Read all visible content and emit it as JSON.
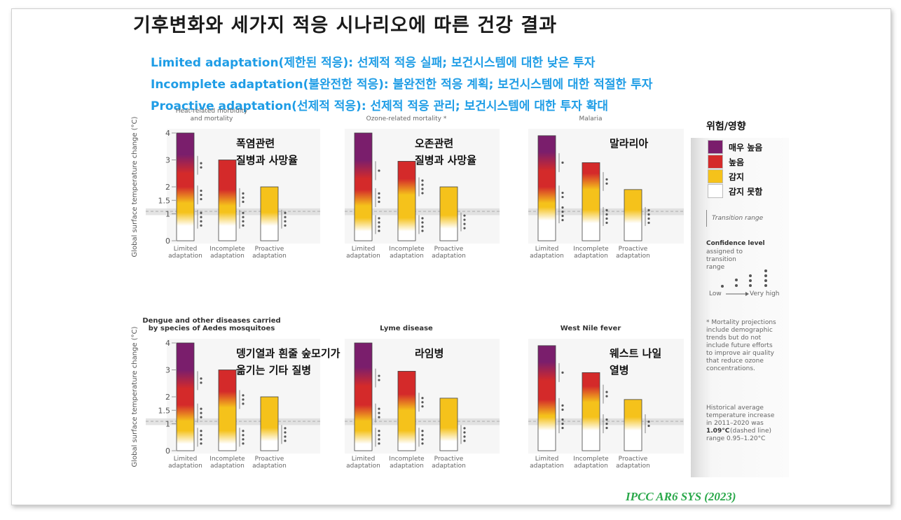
{
  "title": "기후변화와 세가지 적응 시나리오에 따른 건강 결과",
  "subtitles": [
    "Limited adaptation(제한된 적응): 선제적 적응 실패; 보건시스템에 대한 낮은 투자",
    "Incomplete adaptation(불완전한 적응): 불완전한 적응 계획; 보건시스템에 대한 적절한 투자",
    "Proactive adaptation(선제적 적응): 선제적 적응 관리; 보건시스템에 대한 투자 확대"
  ],
  "citation": "IPCC AR6 SYS (2023)",
  "colors": {
    "very_high": "#7a1e6c",
    "high": "#d42a2a",
    "moderate": "#f5c21b",
    "undetectable": "#ffffff",
    "title_blue": "#1f9de6",
    "citation_green": "#2aa84a"
  },
  "legend": {
    "title": "위험/영향",
    "items": [
      {
        "label": "매우 높음",
        "color": "#7a1e6c"
      },
      {
        "label": "높음",
        "color": "#d42a2a"
      },
      {
        "label": "감지",
        "color": "#f5c21b"
      },
      {
        "label": "감지 못함",
        "color": "#ffffff"
      }
    ],
    "transition_label": "Transition range",
    "confidence_title": "Confidence level",
    "confidence_desc": [
      "assigned to",
      "transition",
      "range"
    ],
    "confidence_low": "Low",
    "confidence_high": "Very high",
    "mortality_note": [
      "* Mortality projections",
      "include demographic",
      "trends but do not",
      "include future efforts",
      "to improve air quality",
      "that reduce ozone",
      "concentrations."
    ],
    "historical_note_pre": [
      "Historical average",
      "temperature increase",
      "in 2011–2020 was"
    ],
    "historical_value": "1.09°C",
    "historical_note_post": [
      "(dashed line)",
      "range 0.95–1.20°C"
    ]
  },
  "chart_data": [
    {
      "type": "bar",
      "title": "Heat-related morbidity and mortality",
      "title_lines": [
        "Heat-related morbidity",
        "and mortality"
      ],
      "korean_label": [
        "폭염관련",
        "질병과 사망율"
      ],
      "ylabel": "Global surface temperature change (°C)",
      "ylim": [
        0,
        4
      ],
      "yticks": [
        "0",
        "1",
        "1.5",
        "2",
        "3",
        "4"
      ],
      "categories": [
        [
          "Limited",
          "adaptation"
        ],
        [
          "Incomplete",
          "adaptation"
        ],
        [
          "Proactive",
          "adaptation"
        ]
      ],
      "bars": [
        {
          "top": 4.0,
          "moderate_start": 0.8,
          "high_start": 1.7,
          "very_high_start": 2.8,
          "confidence": [
            "****",
            "***",
            "**"
          ]
        },
        {
          "top": 3.0,
          "moderate_start": 0.8,
          "high_start": 1.6,
          "very_high_start": null,
          "confidence": [
            "****",
            "***"
          ]
        },
        {
          "top": 2.0,
          "moderate_start": 0.8,
          "high_start": null,
          "very_high_start": null,
          "confidence": [
            "****"
          ]
        }
      ]
    },
    {
      "type": "bar",
      "title": "Ozone-related mortality *",
      "title_lines": [
        "Ozone-related mortality *"
      ],
      "korean_label": [
        "오존관련",
        "질병과 사망율"
      ],
      "ylabel": "",
      "ylim": [
        0,
        4
      ],
      "yticks": [],
      "categories": [
        [
          "Limited",
          "adaptation"
        ],
        [
          "Incomplete",
          "adaptation"
        ],
        [
          "Proactive",
          "adaptation"
        ]
      ],
      "bars": [
        {
          "top": 4.0,
          "moderate_start": 0.6,
          "high_start": 1.6,
          "very_high_start": 2.6,
          "confidence": [
            "****",
            "***",
            "*"
          ]
        },
        {
          "top": 2.95,
          "moderate_start": 0.6,
          "high_start": 2.0,
          "very_high_start": null,
          "confidence": [
            "****",
            "****"
          ]
        },
        {
          "top": 2.0,
          "moderate_start": 0.7,
          "high_start": null,
          "very_high_start": null,
          "confidence": [
            "****"
          ]
        }
      ]
    },
    {
      "type": "bar",
      "title": "Malaria",
      "title_lines": [
        "Malaria"
      ],
      "korean_label": [
        "말라리아"
      ],
      "ylabel": "",
      "ylim": [
        0,
        4
      ],
      "yticks": [],
      "categories": [
        [
          "Limited",
          "adaptation"
        ],
        [
          "Incomplete",
          "adaptation"
        ],
        [
          "Proactive",
          "adaptation"
        ]
      ],
      "bars": [
        {
          "top": 3.9,
          "moderate_start": 1.0,
          "high_start": 1.7,
          "very_high_start": 2.9,
          "confidence": [
            "****",
            "**",
            "*"
          ]
        },
        {
          "top": 2.9,
          "moderate_start": 0.9,
          "high_start": 2.2,
          "very_high_start": null,
          "confidence": [
            "****",
            "**"
          ]
        },
        {
          "top": 1.9,
          "moderate_start": 0.9,
          "high_start": null,
          "very_high_start": null,
          "confidence": [
            "****"
          ]
        }
      ]
    },
    {
      "type": "bar",
      "title": "Dengue and other diseases carried by species of Aedes mosquitoes",
      "title_lines": [
        "Dengue and other diseases carried",
        "by species of Aedes mosquitoes"
      ],
      "korean_label": [
        "뎅기열과 흰줄 숲모기가",
        "옮기는 기타 질병"
      ],
      "ylabel": "Global surface temperature change (°C)",
      "ylim": [
        0,
        4
      ],
      "yticks": [
        "0",
        "1",
        "1.5",
        "2",
        "3",
        "4"
      ],
      "categories": [
        [
          "Limited",
          "adaptation"
        ],
        [
          "Incomplete",
          "adaptation"
        ],
        [
          "Proactive",
          "adaptation"
        ]
      ],
      "bars": [
        {
          "top": 4.0,
          "moderate_start": 0.5,
          "high_start": 1.4,
          "very_high_start": 2.6,
          "confidence": [
            "****",
            "***",
            "**"
          ]
        },
        {
          "top": 3.0,
          "moderate_start": 0.5,
          "high_start": 1.9,
          "very_high_start": null,
          "confidence": [
            "****",
            "***"
          ]
        },
        {
          "top": 2.0,
          "moderate_start": 0.6,
          "high_start": null,
          "very_high_start": null,
          "confidence": [
            "****"
          ]
        }
      ]
    },
    {
      "type": "bar",
      "title": "Lyme disease",
      "title_lines": [
        "Lyme disease"
      ],
      "korean_label": [
        "라임병"
      ],
      "ylabel": "",
      "ylim": [
        0,
        4
      ],
      "yticks": [],
      "categories": [
        [
          "Limited",
          "adaptation"
        ],
        [
          "Incomplete",
          "adaptation"
        ],
        [
          "Proactive",
          "adaptation"
        ]
      ],
      "bars": [
        {
          "top": 4.0,
          "moderate_start": 0.5,
          "high_start": 1.4,
          "very_high_start": 2.7,
          "confidence": [
            "****",
            "***",
            "**"
          ]
        },
        {
          "top": 2.95,
          "moderate_start": 0.5,
          "high_start": 1.8,
          "very_high_start": null,
          "confidence": [
            "****",
            "***"
          ]
        },
        {
          "top": 1.95,
          "moderate_start": 0.6,
          "high_start": null,
          "very_high_start": null,
          "confidence": [
            "****"
          ]
        }
      ]
    },
    {
      "type": "bar",
      "title": "West Nile fever",
      "title_lines": [
        "West Nile fever"
      ],
      "korean_label": [
        "웨스트 나일",
        "열병"
      ],
      "ylabel": "",
      "ylim": [
        0,
        4
      ],
      "yticks": [],
      "categories": [
        [
          "Limited",
          "adaptation"
        ],
        [
          "Incomplete",
          "adaptation"
        ],
        [
          "Proactive",
          "adaptation"
        ]
      ],
      "bars": [
        {
          "top": 3.9,
          "moderate_start": 1.0,
          "high_start": 1.6,
          "very_high_start": 2.9,
          "confidence": [
            "***",
            "**",
            "*"
          ]
        },
        {
          "top": 2.9,
          "moderate_start": 1.0,
          "high_start": 2.1,
          "very_high_start": null,
          "confidence": [
            "***",
            "**"
          ]
        },
        {
          "top": 1.9,
          "moderate_start": 1.0,
          "high_start": null,
          "very_high_start": null,
          "confidence": [
            "**"
          ]
        }
      ]
    }
  ]
}
